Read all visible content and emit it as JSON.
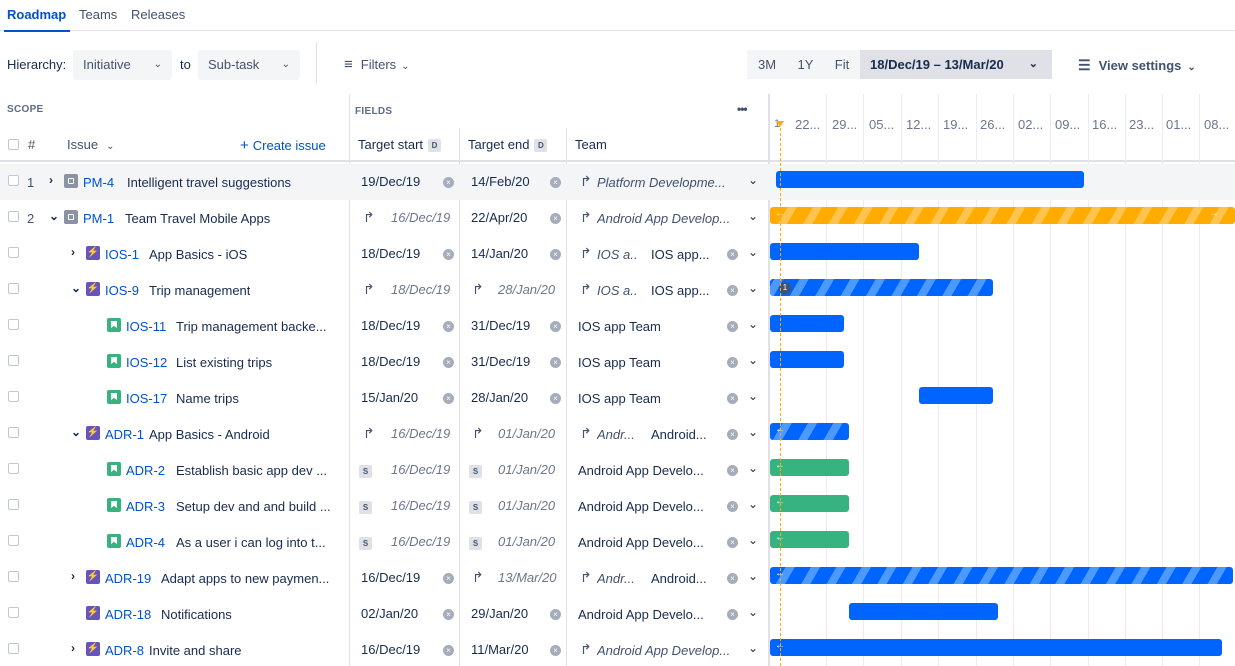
{
  "nav": {
    "tabs": [
      "Roadmap",
      "Teams",
      "Releases"
    ]
  },
  "toolbar": {
    "hierarchy_label": "Hierarchy:",
    "from_value": "Initiative",
    "to_label": "to",
    "to_value": "Sub-task",
    "filters_label": "Filters",
    "zoom": [
      "3M",
      "1Y",
      "Fit"
    ],
    "date_range": "18/Dec/19 – 13/Mar/20",
    "view_settings": "View settings"
  },
  "scope": {
    "label": "SCOPE",
    "hash": "#",
    "issue": "Issue",
    "create": "Create issue"
  },
  "fields": {
    "label": "FIELDS",
    "more": "•••",
    "target_start": "Target start",
    "target_end": "Target end",
    "team": "Team",
    "d_badge": "D"
  },
  "timeline": {
    "ticks": [
      "22...",
      "29...",
      "05...",
      "12...",
      "19...",
      "26...",
      "02...",
      "09...",
      "16...",
      "23...",
      "01...",
      "08..."
    ],
    "first_tick": "1"
  },
  "rows": [
    {
      "num": "1",
      "key": "PM-4",
      "summary": "Intelligent travel suggestions",
      "start": "19/Dec/19",
      "end": "14/Feb/20",
      "team": "Platform Developme...",
      "team2": ""
    },
    {
      "num": "2",
      "key": "PM-1",
      "summary": "Team Travel Mobile Apps",
      "start": "16/Dec/19",
      "end": "22/Apr/20",
      "team": "Android App Develop...",
      "team2": ""
    },
    {
      "num": "",
      "key": "IOS-1",
      "summary": "App Basics - iOS",
      "start": "18/Dec/19",
      "end": "14/Jan/20",
      "team": "IOS a...",
      "team2": "IOS app..."
    },
    {
      "num": "",
      "key": "IOS-9",
      "summary": "Trip management",
      "start": "18/Dec/19",
      "end": "28/Jan/20",
      "team": "IOS a...",
      "team2": "IOS app...",
      "badge": "1"
    },
    {
      "num": "",
      "key": "IOS-11",
      "summary": "Trip management backe...",
      "start": "18/Dec/19",
      "end": "31/Dec/19",
      "team": "IOS app Team",
      "team2": ""
    },
    {
      "num": "",
      "key": "IOS-12",
      "summary": "List existing trips",
      "start": "18/Dec/19",
      "end": "31/Dec/19",
      "team": "IOS app Team",
      "team2": ""
    },
    {
      "num": "",
      "key": "IOS-17",
      "summary": "Name trips",
      "start": "15/Jan/20",
      "end": "28/Jan/20",
      "team": "IOS app Team",
      "team2": ""
    },
    {
      "num": "",
      "key": "ADR-1",
      "summary": "App Basics - Android",
      "start": "16/Dec/19",
      "end": "01/Jan/20",
      "team": "Andr...",
      "team2": "Android..."
    },
    {
      "num": "",
      "key": "ADR-2",
      "summary": "Establish basic app dev ...",
      "start": "16/Dec/19",
      "end": "01/Jan/20",
      "team": "Android App Develo...",
      "team2": "",
      "s": "S"
    },
    {
      "num": "",
      "key": "ADR-3",
      "summary": "Setup dev and and build ...",
      "start": "16/Dec/19",
      "end": "01/Jan/20",
      "team": "Android App Develo...",
      "team2": "",
      "s": "S"
    },
    {
      "num": "",
      "key": "ADR-4",
      "summary": "As a user i can log into t...",
      "start": "16/Dec/19",
      "end": "01/Jan/20",
      "team": "Android App Develo...",
      "team2": "",
      "s": "S"
    },
    {
      "num": "",
      "key": "ADR-19",
      "summary": "Adapt apps to new paymen...",
      "start": "16/Dec/19",
      "end": "13/Mar/20",
      "team": "Andr...",
      "team2": "Android..."
    },
    {
      "num": "",
      "key": "ADR-18",
      "summary": "Notifications",
      "start": "02/Jan/20",
      "end": "29/Jan/20",
      "team": "Android App Develo...",
      "team2": ""
    },
    {
      "num": "",
      "key": "ADR-8",
      "summary": "Invite and share",
      "start": "16/Dec/19",
      "end": "11/Mar/20",
      "team": "Android App Develop...",
      "team2": ""
    }
  ]
}
